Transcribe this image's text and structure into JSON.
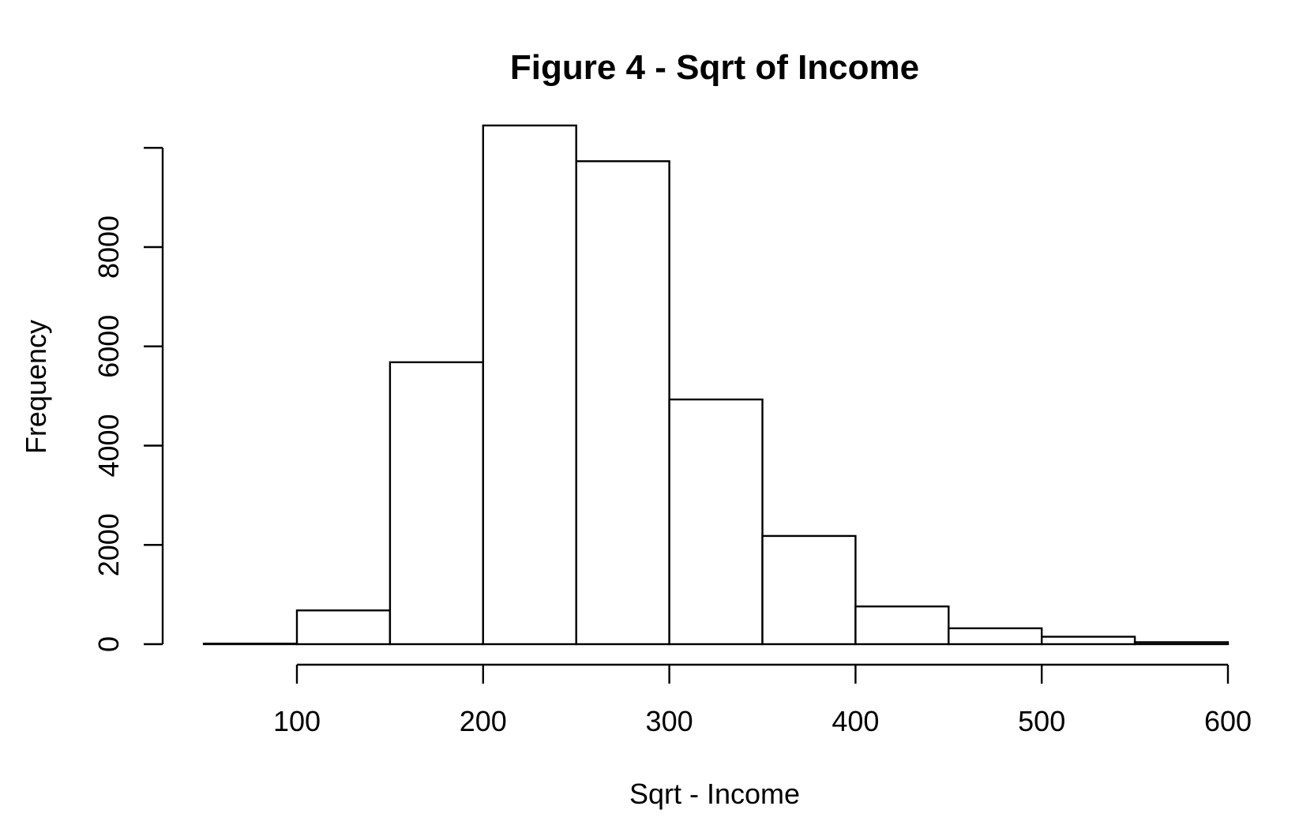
{
  "chart_data": {
    "type": "bar",
    "title": "Figure 4 - Sqrt of Income",
    "xlabel": "Sqrt - Income",
    "ylabel": "Frequency",
    "bin_edges": [
      50,
      100,
      150,
      200,
      250,
      300,
      350,
      400,
      450,
      500,
      550,
      600
    ],
    "values": [
      10,
      680,
      5680,
      10450,
      9730,
      4930,
      2180,
      760,
      320,
      150,
      40
    ],
    "x_ticks": [
      100,
      200,
      300,
      400,
      500,
      600
    ],
    "y_ticks": [
      0,
      2000,
      4000,
      6000,
      8000
    ],
    "xlim": [
      100,
      600
    ],
    "ylim": [
      0,
      10000
    ],
    "grid": false,
    "legend": "none",
    "colors": {
      "bar_fill": "#ffffff",
      "bar_stroke": "#000000",
      "text": "#000000"
    }
  }
}
